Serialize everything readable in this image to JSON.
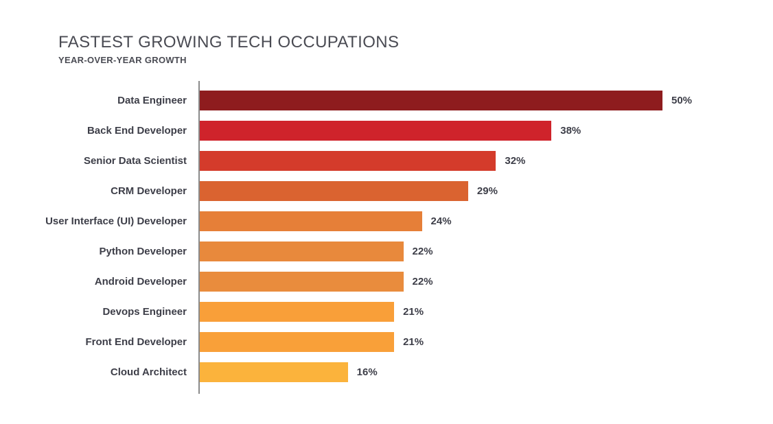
{
  "header": {
    "title": "FASTEST GROWING TECH OCCUPATIONS",
    "subtitle": "YEAR-OVER-YEAR GROWTH"
  },
  "chart_data": {
    "type": "bar",
    "orientation": "horizontal",
    "title": "FASTEST GROWING TECH OCCUPATIONS",
    "subtitle": "YEAR-OVER-YEAR GROWTH",
    "xlabel": "",
    "ylabel": "",
    "xlim": [
      0,
      52
    ],
    "grid": false,
    "legend": "none",
    "axis_line_color": "#8a8a8a",
    "text_color": "#3d3e48",
    "categories": [
      "Data Engineer",
      "Back End Developer",
      "Senior Data Scientist",
      "CRM Developer",
      "User Interface (UI) Developer",
      "Python Developer",
      "Android Developer",
      "Devops Engineer",
      "Front End Developer",
      "Cloud Architect"
    ],
    "values": [
      50,
      38,
      32,
      29,
      24,
      22,
      22,
      21,
      21,
      16
    ],
    "value_labels": [
      "50%",
      "38%",
      "32%",
      "29%",
      "24%",
      "22%",
      "22%",
      "21%",
      "21%",
      "16%"
    ],
    "bar_colors": [
      "#8e1c1e",
      "#cf232b",
      "#d43b2b",
      "#da6330",
      "#e67f38",
      "#e8893c",
      "#e98c3d",
      "#f99f39",
      "#f9a039",
      "#fbb33c"
    ]
  }
}
